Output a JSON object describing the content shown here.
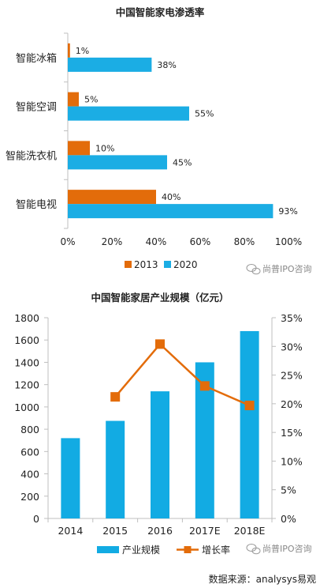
{
  "colors": {
    "c2013": "#E36C0A",
    "c2020": "#1BADE4",
    "bar": "#12ABE3",
    "line": "#E36C0A",
    "axis": "#BFBFBF",
    "grid": "#D9D9D9"
  },
  "watermark": "尚普IPO咨询",
  "source": "数据来源：analysys易观",
  "chart_data": [
    {
      "type": "bar",
      "orientation": "horizontal",
      "title": "中国智能家电渗透率",
      "categories": [
        "智能冰箱",
        "智能空调",
        "智能洗衣机",
        "智能电视"
      ],
      "series": [
        {
          "name": "2013",
          "values": [
            1,
            5,
            10,
            40
          ],
          "labels": [
            "1%",
            "5%",
            "10%",
            "40%"
          ],
          "color": "#E36C0A"
        },
        {
          "name": "2020",
          "values": [
            38,
            55,
            45,
            93
          ],
          "labels": [
            "38%",
            "55%",
            "45%",
            "93%"
          ],
          "color": "#1BADE4"
        }
      ],
      "xlim": [
        0,
        100
      ],
      "xticks": [
        "0%",
        "20%",
        "40%",
        "60%",
        "80%",
        "100%"
      ],
      "legend": "bottom"
    },
    {
      "type": "bar",
      "title": "中国智能家居产业规模（亿元）",
      "categories": [
        "2014",
        "2015",
        "2016",
        "2017E",
        "2018E"
      ],
      "series": [
        {
          "name": "产业规模",
          "type": "bar",
          "values": [
            720,
            875,
            1140,
            1400,
            1680
          ],
          "axis": "left"
        },
        {
          "name": "增长率",
          "type": "line",
          "values": [
            null,
            21.2,
            30.4,
            23.1,
            19.7
          ],
          "axis": "right"
        }
      ],
      "ylim": [
        0,
        1800
      ],
      "yticks": [
        "0",
        "200",
        "400",
        "600",
        "800",
        "1000",
        "1200",
        "1400",
        "1600",
        "1800"
      ],
      "y2lim": [
        0,
        35
      ],
      "y2ticks": [
        "0%",
        "5%",
        "10%",
        "15%",
        "20%",
        "25%",
        "30%",
        "35%"
      ],
      "legend": "bottom"
    }
  ]
}
